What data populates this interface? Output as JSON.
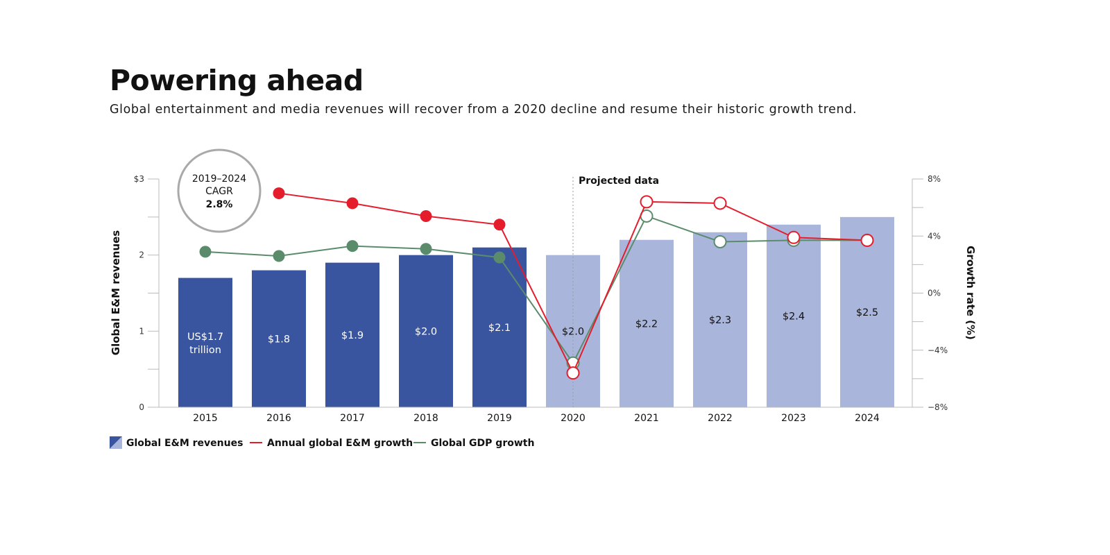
{
  "title": "Powering ahead",
  "subtitle": "Global entertainment and media revenues will recover from a 2020 decline and resume their historic growth trend.",
  "cagr": {
    "line1": "2019–2024",
    "line2": "CAGR",
    "value": "2.8%"
  },
  "projected_label": "Projected data",
  "colors": {
    "bar_actual": "#3a55a0",
    "bar_projected": "#aab5dc",
    "em_growth": "#e41c2b",
    "gdp_growth": "#5a8c6c",
    "axis": "#bbbbbb"
  },
  "chart_data": {
    "type": "bar",
    "title": "Powering ahead",
    "categories": [
      "2015",
      "2016",
      "2017",
      "2018",
      "2019",
      "2020",
      "2021",
      "2022",
      "2023",
      "2024"
    ],
    "projected_from": "2020",
    "ylabel": "Global E&M revenues",
    "ylim": [
      0,
      3
    ],
    "y_ticks": [
      "0",
      "1",
      "2",
      "$3"
    ],
    "y2label": "Growth rate (%)",
    "y2lim": [
      -8,
      8
    ],
    "y2_ticks": [
      "−8%",
      "−4%",
      "0%",
      "4%",
      "8%"
    ],
    "series": [
      {
        "name": "Global E&M revenues",
        "type": "bar",
        "axis": "left",
        "values": [
          1.7,
          1.8,
          1.9,
          2.0,
          2.1,
          2.0,
          2.2,
          2.3,
          2.4,
          2.5
        ],
        "labels": [
          "US$1.7\ntrillion",
          "$1.8",
          "$1.9",
          "$2.0",
          "$2.1",
          "$2.0",
          "$2.2",
          "$2.3",
          "$2.4",
          "$2.5"
        ]
      },
      {
        "name": "Annual global E&M growth",
        "type": "line",
        "axis": "right",
        "values": [
          null,
          7.0,
          6.3,
          5.4,
          4.8,
          -5.6,
          6.4,
          6.3,
          3.9,
          3.7
        ]
      },
      {
        "name": "Global GDP growth",
        "type": "line",
        "axis": "right",
        "values": [
          2.9,
          2.6,
          3.3,
          3.1,
          2.5,
          -4.9,
          5.4,
          3.6,
          3.7,
          3.7
        ]
      }
    ],
    "legend": [
      "Global E&M revenues",
      "Annual global E&M growth",
      "Global GDP growth"
    ],
    "legend_position": "bottom-left"
  }
}
